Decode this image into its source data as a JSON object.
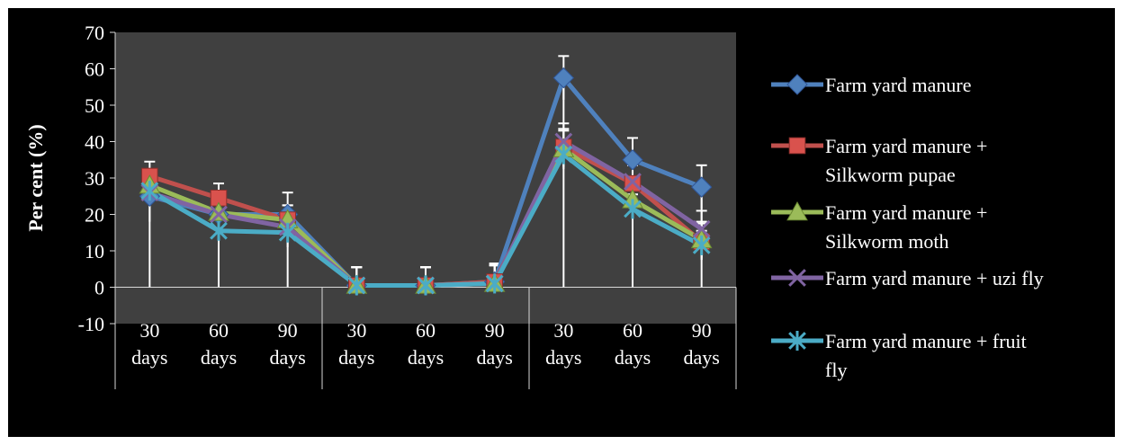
{
  "chart_data": {
    "type": "line",
    "ylabel": "Per cent (%)",
    "xlabel": "",
    "ylim": [
      -10,
      70
    ],
    "yticks": [
      70,
      60,
      50,
      40,
      30,
      20,
      10,
      0,
      -10
    ],
    "categories": [
      [
        "30",
        "days"
      ],
      [
        "60",
        "days"
      ],
      [
        "90",
        "days"
      ],
      [
        "30",
        "days"
      ],
      [
        "60",
        "days"
      ],
      [
        "90",
        "days"
      ],
      [
        "30",
        "days"
      ],
      [
        "60",
        "days"
      ],
      [
        "90",
        "days"
      ]
    ],
    "grid": false,
    "legend_position": "right",
    "plot_background": "#404040",
    "series": [
      {
        "name": "Farm yard manure",
        "name_lines": [
          "Farm yard manure"
        ],
        "color": "#4F81BD",
        "marker_color": "#4F81BD",
        "marker": "diamond",
        "values": [
          25,
          20,
          20,
          0.5,
          0.5,
          1.5,
          57.5,
          35,
          27.5
        ],
        "errors": [
          7,
          5,
          6,
          5,
          5,
          5,
          6,
          6,
          6
        ]
      },
      {
        "name": "Farm yard manure + Silkworm pupae",
        "name_lines": [
          "Farm yard manure +",
          "Silkworm pupae"
        ],
        "color": "#C0504D",
        "marker_color": "#D9524D",
        "marker": "square",
        "values": [
          30.5,
          24.5,
          18.5,
          0.5,
          0.5,
          1.5,
          38.5,
          28.5,
          12.5
        ],
        "errors": [
          4,
          4,
          4,
          5,
          5,
          5,
          5,
          5,
          5
        ]
      },
      {
        "name": "Farm yard manure + Silkworm moth",
        "name_lines": [
          "Farm yard manure +",
          "Silkworm moth"
        ],
        "color": "#9BBB59",
        "marker_color": "#9BBB59",
        "marker": "triangle",
        "values": [
          28,
          20.5,
          18.5,
          0.5,
          0.5,
          1,
          38,
          24,
          13
        ],
        "errors": [
          4,
          4,
          4,
          5,
          5,
          5,
          5,
          5,
          5
        ]
      },
      {
        "name": "Farm yard manure + uzi fly",
        "name_lines": [
          "Farm yard manure + uzi fly"
        ],
        "color": "#8064A2",
        "marker_color": "#8064A2",
        "marker": "x",
        "values": [
          26,
          20,
          16.5,
          0.5,
          0.5,
          1,
          40,
          29,
          16
        ],
        "errors": [
          4,
          4,
          4,
          5,
          5,
          5,
          5,
          5,
          5
        ]
      },
      {
        "name": "Farm yard manure + fruit fly",
        "name_lines": [
          "Farm yard manure + fruit",
          "fly"
        ],
        "color": "#4BACC6",
        "marker_color": "#4BACC6",
        "marker": "star",
        "values": [
          26.5,
          15.5,
          15,
          0.5,
          0.5,
          1,
          36.5,
          21.5,
          11.5
        ],
        "errors": [
          4,
          4,
          4,
          5,
          5,
          5,
          4,
          4,
          4
        ]
      }
    ]
  }
}
